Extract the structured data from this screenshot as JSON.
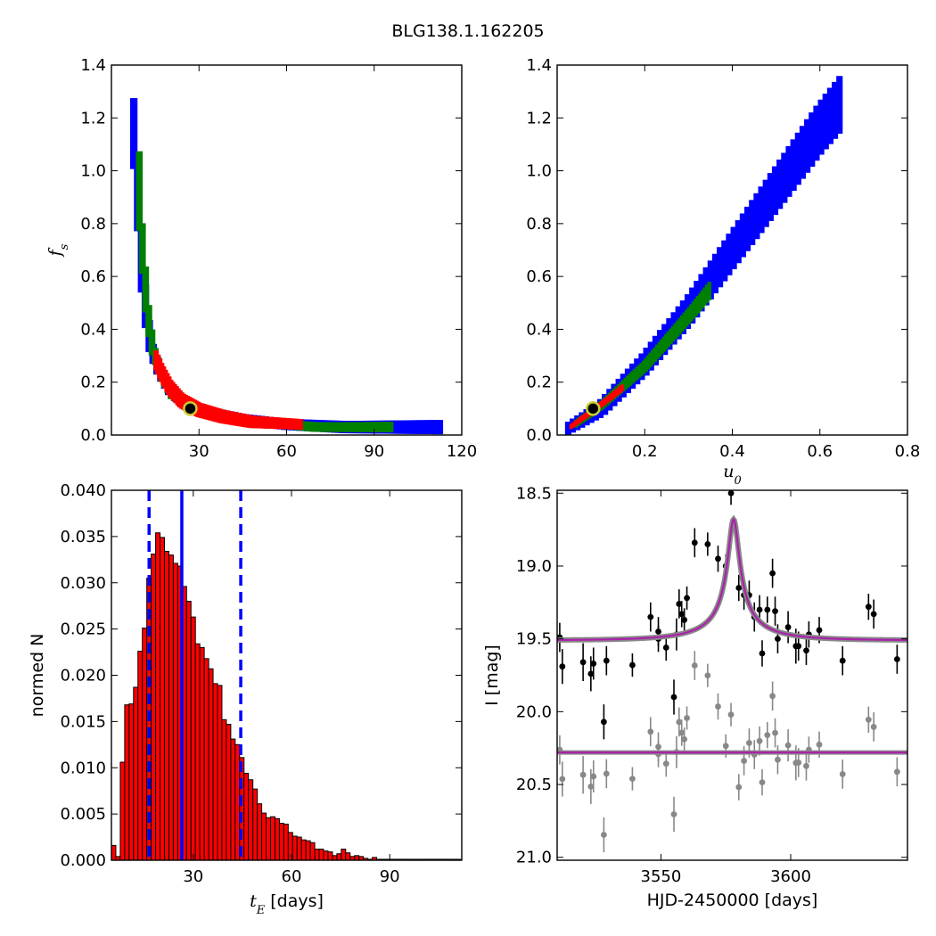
{
  "figure": {
    "title": "BLG138.1.162205"
  },
  "colors": {
    "one_sigma": "#ff0000",
    "two_sigma": "#008000",
    "three_sigma": "#0000ff",
    "best_fit_marker": "#cccc33",
    "histogram_bar": "#ff0000",
    "median_line": "#0000ff",
    "model_curve": "#aa22aa",
    "data_points": "#000000",
    "residual_points": "#888888"
  },
  "chart_data": [
    {
      "type": "heatmap",
      "panel": "top-left",
      "xlabel": "",
      "ylabel": "f_s",
      "ylabel_display": {
        "main": "f",
        "sub": "s"
      },
      "xlim": [
        0,
        120
      ],
      "ylim": [
        0,
        1.4
      ],
      "xticks": [
        30,
        60,
        90,
        120
      ],
      "yticks": [
        0.0,
        0.2,
        0.4,
        0.6,
        0.8,
        1.0,
        1.2,
        1.4
      ],
      "best_fit": {
        "x": 27,
        "y": 0.1
      },
      "regions": [
        {
          "level": "3sigma",
          "color": "#0000ff",
          "ridge": [
            [
              7,
              1.26
            ],
            [
              9,
              0.9
            ],
            [
              11,
              0.55
            ],
            [
              13,
              0.35
            ],
            [
              16,
              0.25
            ],
            [
              20,
              0.17
            ],
            [
              25,
              0.12
            ],
            [
              32,
              0.09
            ],
            [
              45,
              0.06
            ],
            [
              60,
              0.04
            ],
            [
              80,
              0.03
            ],
            [
              100,
              0.03
            ],
            [
              113,
              0.03
            ]
          ],
          "halfwidth": [
            [
              7,
              0.005
            ],
            [
              120,
              0.018
            ]
          ]
        },
        {
          "level": "2sigma",
          "color": "#008000",
          "ridge": [
            [
              9,
              1.06
            ],
            [
              10,
              0.8
            ],
            [
              12,
              0.5
            ],
            [
              14,
              0.33
            ],
            [
              17,
              0.23
            ],
            [
              21,
              0.15
            ],
            [
              27,
              0.11
            ],
            [
              35,
              0.08
            ],
            [
              50,
              0.05
            ],
            [
              70,
              0.03
            ],
            [
              96,
              0.03
            ]
          ],
          "halfwidth": [
            [
              9,
              0.004
            ],
            [
              96,
              0.01
            ]
          ]
        },
        {
          "level": "1sigma",
          "color": "#ff0000",
          "ridge": [
            [
              15,
              0.29
            ],
            [
              17,
              0.24
            ],
            [
              20,
              0.18
            ],
            [
              24,
              0.13
            ],
            [
              30,
              0.095
            ],
            [
              38,
              0.07
            ],
            [
              48,
              0.05
            ],
            [
              65,
              0.04
            ]
          ],
          "halfwidth": [
            [
              15,
              0.02
            ],
            [
              65,
              0.01
            ]
          ]
        }
      ]
    },
    {
      "type": "heatmap",
      "panel": "top-right",
      "xlabel": "u_0",
      "xlabel_display": {
        "main": "u",
        "sub": "0"
      },
      "ylabel": "",
      "xlim": [
        0,
        0.8
      ],
      "ylim": [
        0,
        1.4
      ],
      "xticks": [
        0.2,
        0.4,
        0.6,
        0.8
      ],
      "yticks": [
        0.0,
        0.2,
        0.4,
        0.6,
        0.8,
        1.0,
        1.2,
        1.4
      ],
      "best_fit": {
        "x": 0.082,
        "y": 0.1
      },
      "regions": [
        {
          "level": "3sigma",
          "color": "#0000ff",
          "ridge": [
            [
              0.02,
              0.02
            ],
            [
              0.1,
              0.1
            ],
            [
              0.2,
              0.27
            ],
            [
              0.3,
              0.47
            ],
            [
              0.4,
              0.7
            ],
            [
              0.5,
              0.93
            ],
            [
              0.6,
              1.16
            ],
            [
              0.65,
              1.26
            ]
          ],
          "halfwidth": [
            [
              0.02,
              0.02
            ],
            [
              0.65,
              0.1
            ]
          ]
        },
        {
          "level": "2sigma",
          "color": "#008000",
          "ridge": [
            [
              0.04,
              0.04
            ],
            [
              0.1,
              0.11
            ],
            [
              0.2,
              0.26
            ],
            [
              0.3,
              0.45
            ],
            [
              0.35,
              0.55
            ]
          ],
          "halfwidth": [
            [
              0.04,
              0.012
            ],
            [
              0.35,
              0.03
            ]
          ]
        },
        {
          "level": "1sigma",
          "color": "#ff0000",
          "ridge": [
            [
              0.03,
              0.03
            ],
            [
              0.08,
              0.09
            ],
            [
              0.12,
              0.14
            ],
            [
              0.15,
              0.18
            ]
          ],
          "halfwidth": [
            [
              0.03,
              0.008
            ],
            [
              0.15,
              0.012
            ]
          ]
        }
      ]
    },
    {
      "type": "bar",
      "panel": "bottom-left",
      "xlabel": "t_E [days]",
      "xlabel_display": {
        "main": "t",
        "sub": "E",
        "rest": " [days]"
      },
      "ylabel": "normed N",
      "xlim": [
        5,
        112
      ],
      "ylim": [
        0,
        0.04
      ],
      "xticks": [
        30,
        60,
        90
      ],
      "yticks": [
        0.0,
        0.005,
        0.01,
        0.015,
        0.02,
        0.025,
        0.03,
        0.035,
        0.04
      ],
      "bin_start": 5,
      "bin_width": 1.35,
      "values": [
        0.0016,
        0.0004,
        0.0106,
        0.0168,
        0.0169,
        0.0187,
        0.0226,
        0.0251,
        0.0305,
        0.0331,
        0.0354,
        0.0349,
        0.0334,
        0.033,
        0.0321,
        0.0318,
        0.0296,
        0.028,
        0.0263,
        0.0234,
        0.023,
        0.0218,
        0.0207,
        0.0191,
        0.0189,
        0.0152,
        0.0147,
        0.0131,
        0.0125,
        0.0111,
        0.0094,
        0.0087,
        0.0077,
        0.0061,
        0.0051,
        0.0046,
        0.0047,
        0.0045,
        0.004,
        0.0039,
        0.003,
        0.0026,
        0.0025,
        0.0022,
        0.0021,
        0.0019,
        0.0012,
        0.0012,
        0.001,
        0.0009,
        0.0005,
        0.0007,
        0.0012,
        0.0008,
        0.0004,
        0.0005,
        0.0004,
        0.0002,
        0.0001,
        0.0003,
        0.0001,
        0.0001,
        0.0001,
        0.0001,
        0.0001,
        0.0001,
        0.0001,
        0.0001,
        0.0001,
        0.0001,
        0.0001,
        0.0001,
        0.0001,
        0.0001,
        0.0001,
        0.0001,
        0.0001,
        0.0001,
        0.0001
      ],
      "median": 26.5,
      "interval": [
        16.5,
        44.5
      ]
    },
    {
      "type": "scatter",
      "panel": "bottom-right",
      "xlabel": "HJD-2450000 [days]",
      "ylabel": "I [mag]",
      "xlim": [
        3510,
        3645
      ],
      "ylim": [
        21.02,
        18.48
      ],
      "xticks": [
        3550,
        3600
      ],
      "yticks": [
        18.5,
        19.0,
        19.5,
        20.0,
        20.5,
        21.0
      ],
      "ytick_labels": [
        "18.5",
        "19.0",
        "19.5",
        "20.0",
        "20.5",
        "21.0"
      ],
      "model": {
        "t0": 3578,
        "baseline": 19.51,
        "peak": 18.68,
        "tE": 27,
        "u0": 0.082,
        "residual_baseline": 20.28
      },
      "data": [
        [
          3511,
          19.49,
          0.1
        ],
        [
          3512,
          19.69,
          0.12
        ],
        [
          3520,
          19.66,
          0.13
        ],
        [
          3523,
          19.74,
          0.12
        ],
        [
          3524,
          19.67,
          0.11
        ],
        [
          3528,
          20.07,
          0.12
        ],
        [
          3529,
          19.65,
          0.1
        ],
        [
          3539,
          19.68,
          0.08
        ],
        [
          3546,
          19.35,
          0.1
        ],
        [
          3549,
          19.45,
          0.1
        ],
        [
          3549,
          19.5,
          0.09
        ],
        [
          3552,
          19.56,
          0.09
        ],
        [
          3555,
          19.9,
          0.12
        ],
        [
          3556,
          19.47,
          0.11
        ],
        [
          3557,
          19.26,
          0.1
        ],
        [
          3558,
          19.33,
          0.09
        ],
        [
          3559,
          19.37,
          0.08
        ],
        [
          3560,
          19.22,
          0.08
        ],
        [
          3563,
          18.84,
          0.1
        ],
        [
          3568,
          18.85,
          0.08
        ],
        [
          3572,
          18.95,
          0.09
        ],
        [
          3575,
          19.0,
          0.08
        ],
        [
          3577,
          18.5,
          0.08
        ],
        [
          3580,
          19.15,
          0.09
        ],
        [
          3582,
          19.2,
          0.1
        ],
        [
          3584,
          19.2,
          0.1
        ],
        [
          3586,
          19.35,
          0.1
        ],
        [
          3588,
          19.3,
          0.1
        ],
        [
          3589,
          19.6,
          0.09
        ],
        [
          3591,
          19.3,
          0.09
        ],
        [
          3593,
          19.05,
          0.1
        ],
        [
          3594,
          19.31,
          0.1
        ],
        [
          3595,
          19.5,
          0.1
        ],
        [
          3599,
          19.42,
          0.11
        ],
        [
          3602,
          19.55,
          0.12
        ],
        [
          3603,
          19.55,
          0.1
        ],
        [
          3606,
          19.58,
          0.1
        ],
        [
          3607,
          19.47,
          0.09
        ],
        [
          3611,
          19.44,
          0.09
        ],
        [
          3620,
          19.65,
          0.1
        ],
        [
          3630,
          19.28,
          0.09
        ],
        [
          3632,
          19.33,
          0.1
        ],
        [
          3641,
          19.64,
          0.1
        ]
      ]
    }
  ]
}
